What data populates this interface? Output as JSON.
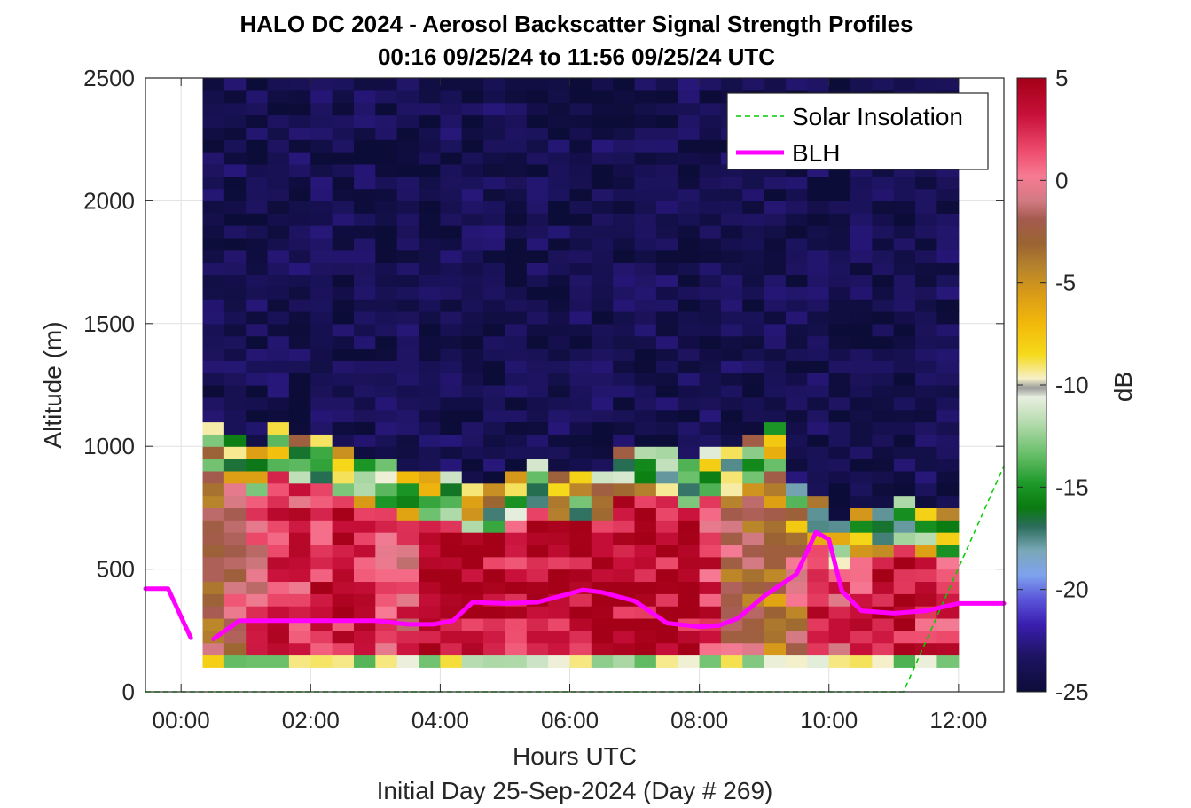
{
  "chart_data": {
    "type": "heatmap",
    "title": "HALO DC 2024 - Aerosol Backscatter Signal Strength Profiles",
    "subtitle": "00:16 09/25/24 to 11:56 09/25/24  UTC",
    "xlabel": "Hours UTC",
    "xlabel2": "Initial Day 25-Sep-2024 (Day # 269)",
    "ylabel": "Altitude (m)",
    "xlim": [
      -0.55,
      12.7
    ],
    "ylim": [
      0,
      2500
    ],
    "x_ticks": [
      0,
      2,
      4,
      6,
      8,
      10,
      12
    ],
    "x_tick_labels": [
      "00:00",
      "02:00",
      "04:00",
      "06:00",
      "08:00",
      "10:00",
      "12:00"
    ],
    "y_ticks": [
      0,
      500,
      1000,
      1500,
      2000,
      2500
    ],
    "y_tick_labels": [
      "0",
      "500",
      "1000",
      "1500",
      "2000",
      "2500"
    ],
    "grid": true,
    "legend_position": "top-right",
    "colorbar": {
      "label": "dB",
      "range": [
        -25,
        5
      ],
      "ticks": [
        5,
        0,
        -5,
        -10,
        -15,
        -20,
        -25
      ],
      "tick_labels": [
        "5",
        "0",
        "-5",
        "-10",
        "-15",
        "-20",
        "-25"
      ]
    },
    "heatmap": {
      "x_start_hours": 0.3333,
      "column_width_hours": 0.3333,
      "y_start_m": 100,
      "row_height_m": 50,
      "value_units": "dB",
      "columns": 35,
      "profile_column_summary": "layer top (m) and near-surface dB level per column",
      "layer_tops_m": [
        1070,
        1020,
        1000,
        1070,
        1020,
        1050,
        1000,
        950,
        920,
        900,
        880,
        860,
        830,
        830,
        880,
        920,
        900,
        890,
        880,
        980,
        1000,
        1000,
        930,
        960,
        1000,
        1050,
        1100,
        820,
        760,
        700,
        740,
        740,
        760,
        720,
        720
      ],
      "layer_dB": [
        -3,
        -1,
        1,
        2,
        2,
        3,
        3,
        3,
        2,
        1,
        4,
        4,
        4,
        4,
        3,
        3,
        4,
        4,
        4,
        4,
        4,
        4,
        4,
        2,
        -2,
        -3,
        -4,
        -2,
        3,
        1,
        2,
        4,
        3,
        2,
        2
      ],
      "free_troposphere_dB": -24
    },
    "series": [
      {
        "name": "Solar Insolation",
        "style": "dashed",
        "color": "#00cc00",
        "x": [
          -0.55,
          11.15,
          12.7
        ],
        "y": [
          0,
          0,
          920
        ]
      },
      {
        "name": "BLH",
        "style": "solid",
        "color": "#ff00ff",
        "segments": [
          {
            "x": [
              -0.55,
              -0.2,
              0.15
            ],
            "y": [
              420,
              420,
              220
            ]
          },
          {
            "x": [
              0.5,
              0.9,
              1.5,
              2.0,
              2.5,
              3.0,
              3.5,
              3.9,
              4.2,
              4.5,
              5.0,
              5.5,
              6.0,
              6.2,
              6.5,
              7.0,
              7.5,
              8.0,
              8.3,
              8.6,
              9.0,
              9.5,
              9.8,
              10.0,
              10.2,
              10.5,
              11.0,
              11.5,
              12.0,
              12.7
            ],
            "y": [
              215,
              290,
              290,
              290,
              290,
              290,
              275,
              275,
              290,
              365,
              360,
              365,
              400,
              415,
              405,
              370,
              280,
              265,
              270,
              300,
              390,
              480,
              650,
              620,
              410,
              330,
              320,
              330,
              360,
              360
            ]
          }
        ]
      }
    ]
  }
}
